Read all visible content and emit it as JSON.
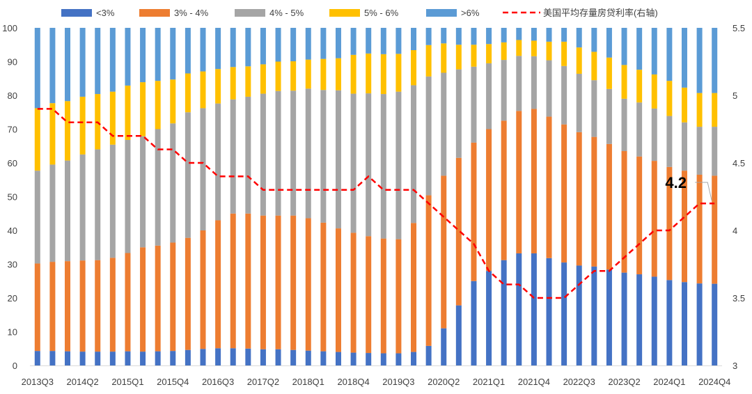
{
  "chart_data": {
    "type": "bar",
    "stacked": true,
    "title": "",
    "xlabel": "",
    "ylabel": "",
    "ylim": [
      0,
      100
    ],
    "y2lim": [
      3,
      5.5
    ],
    "yticks": [
      "0",
      "10",
      "20",
      "30",
      "40",
      "50",
      "60",
      "70",
      "80",
      "90",
      "100"
    ],
    "y2ticks": [
      "3",
      "3.5",
      "4",
      "4.5",
      "5",
      "5.5"
    ],
    "categories": [
      "2013Q3",
      "2013Q4",
      "2014Q1",
      "2014Q2",
      "2014Q3",
      "2014Q4",
      "2015Q1",
      "2015Q2",
      "2015Q3",
      "2015Q4",
      "2016Q1",
      "2016Q2",
      "2016Q3",
      "2016Q4",
      "2017Q1",
      "2017Q2",
      "2017Q3",
      "2017Q4",
      "2018Q1",
      "2018Q2",
      "2018Q3",
      "2018Q4",
      "2019Q1",
      "2019Q2",
      "2019Q3",
      "2019Q4",
      "2020Q1",
      "2020Q2",
      "2020Q3",
      "2020Q4",
      "2021Q1",
      "2021Q2",
      "2021Q3",
      "2021Q4",
      "2022Q1",
      "2022Q2",
      "2022Q3",
      "2022Q4",
      "2023Q1",
      "2023Q2",
      "2023Q3",
      "2023Q4",
      "2024Q1",
      "2024Q2",
      "2024Q3",
      "2024Q4"
    ],
    "xtick_labels": [
      "2013Q3",
      "2014Q2",
      "2015Q1",
      "2015Q4",
      "2016Q3",
      "2017Q2",
      "2018Q1",
      "2018Q4",
      "2019Q3",
      "2020Q2",
      "2021Q1",
      "2021Q4",
      "2022Q3",
      "2023Q2",
      "2024Q1",
      "2024Q4"
    ],
    "series": [
      {
        "name": "<3%",
        "color": "#4472C4",
        "values": [
          4.3,
          4.3,
          4.2,
          4.1,
          4.1,
          4.1,
          4.2,
          4.1,
          4.2,
          4.3,
          4.6,
          4.9,
          5.1,
          5.1,
          5.0,
          4.8,
          4.8,
          4.6,
          4.4,
          4.2,
          4.0,
          3.8,
          3.7,
          3.6,
          3.6,
          4.0,
          5.8,
          11.0,
          17.8,
          25.0,
          28.0,
          31.2,
          33.2,
          33.2,
          31.8,
          30.5,
          29.6,
          29.3,
          28.4,
          27.5,
          27.0,
          26.3,
          25.3,
          24.7,
          24.3,
          24.2
        ]
      },
      {
        "name": "3% - 4%",
        "color": "#ED7D31",
        "values": [
          25.9,
          26.4,
          26.7,
          27.0,
          27.1,
          27.8,
          29.1,
          30.9,
          31.3,
          32.1,
          33.2,
          35.1,
          37.9,
          39.9,
          40.0,
          39.6,
          39.6,
          39.8,
          39.2,
          38.1,
          36.6,
          35.5,
          34.6,
          34.0,
          33.8,
          38.2,
          44.6,
          45.2,
          43.7,
          41.0,
          42.0,
          41.3,
          42.2,
          42.8,
          41.9,
          40.9,
          39.5,
          38.4,
          37.2,
          36.0,
          34.9,
          34.3,
          33.5,
          33.0,
          32.2,
          32.0
        ]
      },
      {
        "name": "4% - 5%",
        "color": "#A5A5A5",
        "values": [
          27.5,
          28.8,
          29.8,
          31.4,
          32.8,
          33.5,
          33.5,
          32.9,
          34.5,
          35.3,
          37.2,
          36.2,
          34.6,
          33.8,
          34.6,
          36.1,
          36.9,
          37.0,
          38.4,
          39.3,
          40.9,
          41.2,
          42.3,
          42.8,
          43.7,
          40.8,
          35.2,
          30.5,
          26.2,
          22.5,
          19.5,
          18.0,
          16.3,
          15.6,
          16.7,
          17.3,
          17.3,
          16.8,
          16.3,
          15.5,
          16.0,
          15.5,
          15.1,
          14.3,
          14.2,
          14.5
        ]
      },
      {
        "name": "5% - 6%",
        "color": "#FFC000",
        "values": [
          18.5,
          18.2,
          17.6,
          17.1,
          16.4,
          15.7,
          16.1,
          16.0,
          14.3,
          13.0,
          11.5,
          10.9,
          10.2,
          9.6,
          9.0,
          8.7,
          8.7,
          8.7,
          8.6,
          9.2,
          9.5,
          11.5,
          11.8,
          11.8,
          11.2,
          10.4,
          9.3,
          8.7,
          7.3,
          6.5,
          5.7,
          5.2,
          4.7,
          4.6,
          5.5,
          7.2,
          7.8,
          8.4,
          9.3,
          10.0,
          9.7,
          10.1,
          10.4,
          10.3,
          10.0,
          10.0
        ]
      },
      {
        "name": ">6%",
        "color": "#5B9BD5",
        "values": [
          23.8,
          22.3,
          21.7,
          20.4,
          19.6,
          18.9,
          17.1,
          16.1,
          15.7,
          15.3,
          13.5,
          12.9,
          12.2,
          11.6,
          11.4,
          10.8,
          10.0,
          9.9,
          9.4,
          9.2,
          9.0,
          8.0,
          7.6,
          7.8,
          7.7,
          6.6,
          5.1,
          4.6,
          5.0,
          5.0,
          4.8,
          4.3,
          3.6,
          3.8,
          4.1,
          4.1,
          5.8,
          7.1,
          8.8,
          11.0,
          12.4,
          13.8,
          15.7,
          17.7,
          19.3,
          19.3
        ]
      }
    ],
    "line": {
      "name": "美国平均存量房贷利率(右轴)",
      "axis": "right",
      "color": "#FF0000",
      "style": "dashed",
      "values": [
        4.9,
        4.9,
        4.8,
        4.8,
        4.8,
        4.7,
        4.7,
        4.7,
        4.6,
        4.6,
        4.5,
        4.5,
        4.4,
        4.4,
        4.4,
        4.3,
        4.3,
        4.3,
        4.3,
        4.3,
        4.3,
        4.3,
        4.4,
        4.3,
        4.3,
        4.3,
        4.2,
        4.1,
        4.0,
        3.9,
        3.7,
        3.6,
        3.6,
        3.5,
        3.5,
        3.5,
        3.6,
        3.7,
        3.7,
        3.8,
        3.9,
        4.0,
        4.0,
        4.1,
        4.2,
        4.2
      ]
    },
    "annotations": [
      {
        "text": "4.2"
      }
    ],
    "legend_position": "top"
  }
}
